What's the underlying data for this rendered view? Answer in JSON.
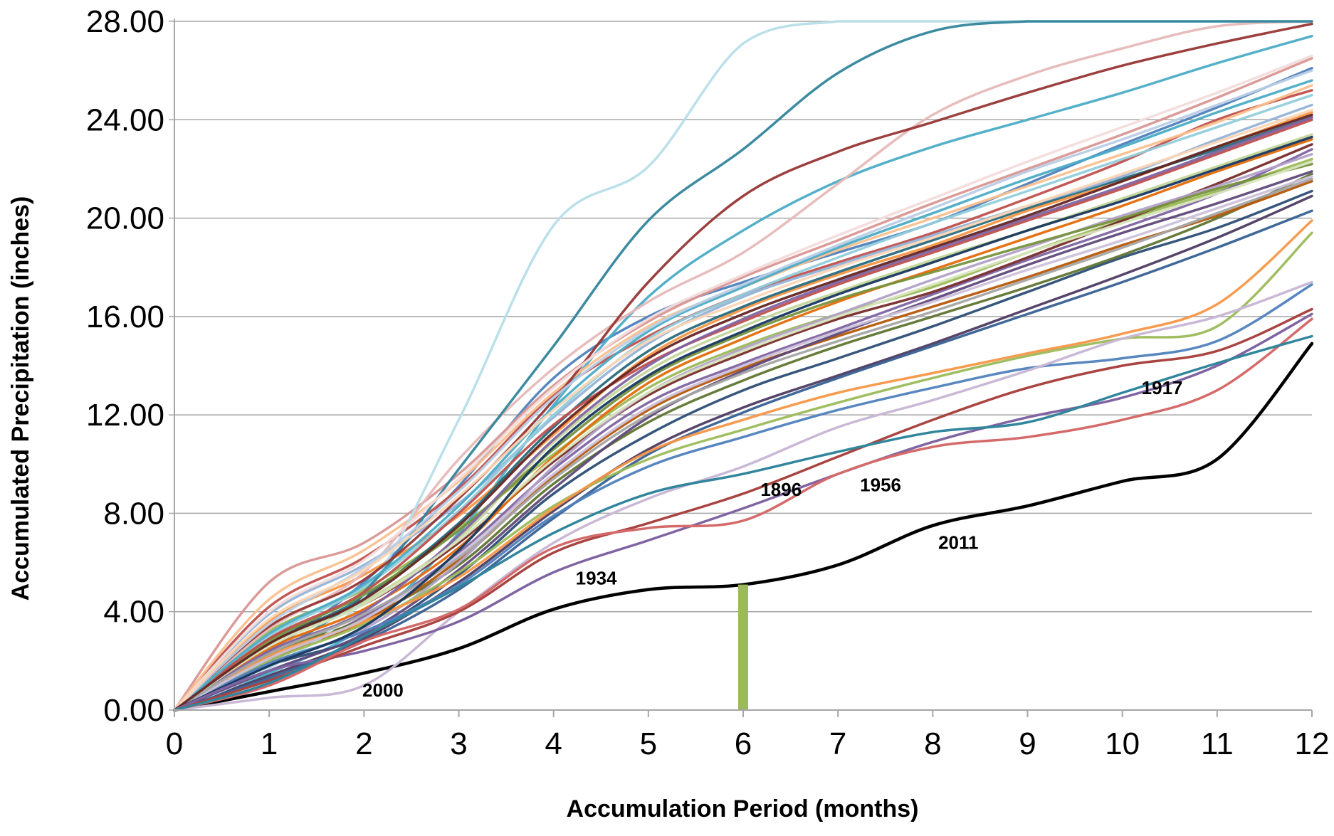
{
  "chart_data": {
    "type": "line",
    "title": "",
    "xlabel": "Accumulation Period (months)",
    "ylabel": "Accumulated Precipitation (inches)",
    "xlim": [
      0,
      12
    ],
    "ylim": [
      0,
      28
    ],
    "x_ticks": [
      "0",
      "1",
      "2",
      "3",
      "4",
      "5",
      "6",
      "7",
      "8",
      "9",
      "10",
      "11",
      "12"
    ],
    "y_ticks": [
      "0.00",
      "4.00",
      "8.00",
      "12.00",
      "16.00",
      "20.00",
      "24.00",
      "28.00"
    ],
    "grid": "horizontal",
    "legend": "none",
    "x": [
      0,
      1,
      2,
      3,
      4,
      5,
      6,
      7,
      8,
      9,
      10,
      11,
      12
    ],
    "highlight_marker": {
      "x": 6,
      "y_from": 0,
      "y_to": 5.1,
      "color": "#9bbb59"
    },
    "highlighted_series": [
      {
        "name": "2011",
        "color": "#000000",
        "values": [
          0,
          0.75,
          1.5,
          2.5,
          4.1,
          4.9,
          5.1,
          5.9,
          7.5,
          8.3,
          9.3,
          10.2,
          14.9
        ]
      },
      {
        "name": "2000",
        "color": "#c9b8d6",
        "values": [
          0,
          0.5,
          1.0,
          4.0,
          6.8,
          8.6,
          9.9,
          11.5,
          12.6,
          13.8,
          15.1,
          16.0,
          17.4
        ]
      },
      {
        "name": "1934",
        "color": "#8064a2",
        "values": [
          0,
          1.6,
          2.4,
          3.6,
          5.6,
          6.9,
          8.2,
          9.6,
          10.9,
          11.9,
          12.7,
          14.0,
          16.1
        ]
      },
      {
        "name": "1896",
        "color": "#a94441",
        "values": [
          0,
          1.2,
          2.6,
          4.0,
          6.4,
          7.6,
          8.8,
          10.3,
          11.8,
          13.1,
          14.0,
          14.6,
          16.3
        ]
      },
      {
        "name": "1956",
        "color": "#d46a6a",
        "values": [
          0,
          1.0,
          2.8,
          4.1,
          6.6,
          7.4,
          7.7,
          9.6,
          10.7,
          11.1,
          11.8,
          13.0,
          15.9
        ]
      },
      {
        "name": "1917",
        "color": "#31859c",
        "values": [
          0,
          1.1,
          3.0,
          5.0,
          7.2,
          8.8,
          9.6,
          10.5,
          11.3,
          11.7,
          12.9,
          14.1,
          15.2
        ]
      }
    ],
    "background_series": [
      {
        "color": "#4f81bd",
        "values": [
          0,
          2.4,
          5.2,
          9.1,
          13.5,
          16.0,
          17.4,
          18.6,
          19.8,
          21.4,
          23.0,
          24.5,
          26.1
        ]
      },
      {
        "color": "#c0504d",
        "values": [
          0,
          4.2,
          6.2,
          9.0,
          12.8,
          15.2,
          16.9,
          18.2,
          19.4,
          20.8,
          22.3,
          24.0,
          25.2
        ]
      },
      {
        "color": "#9bbb59",
        "values": [
          0,
          3.2,
          4.9,
          7.4,
          10.4,
          13.1,
          14.8,
          16.1,
          17.2,
          18.6,
          19.9,
          21.1,
          22.4
        ]
      },
      {
        "color": "#8064a2",
        "values": [
          0,
          2.0,
          3.8,
          6.4,
          9.8,
          12.5,
          14.1,
          15.5,
          16.9,
          18.3,
          19.6,
          21.0,
          22.8
        ]
      },
      {
        "color": "#4bacc6",
        "values": [
          0,
          1.5,
          3.4,
          7.2,
          12.4,
          16.8,
          19.5,
          21.5,
          22.9,
          24.0,
          25.1,
          26.3,
          27.4
        ]
      },
      {
        "color": "#f79646",
        "values": [
          0,
          3.6,
          5.5,
          7.9,
          11.2,
          14.4,
          16.3,
          17.7,
          18.9,
          20.3,
          21.5,
          22.9,
          24.3
        ]
      },
      {
        "color": "#2c4d75",
        "values": [
          0,
          1.8,
          3.0,
          5.5,
          8.8,
          11.2,
          13.0,
          14.3,
          15.6,
          17.0,
          18.4,
          19.6,
          21.1
        ]
      },
      {
        "color": "#772c2a",
        "values": [
          0,
          2.9,
          4.3,
          6.8,
          10.1,
          12.8,
          14.5,
          15.9,
          17.0,
          18.4,
          19.9,
          21.4,
          23.0
        ]
      },
      {
        "color": "#5f7530",
        "values": [
          0,
          2.3,
          3.7,
          5.9,
          9.2,
          11.7,
          13.4,
          14.8,
          16.0,
          17.2,
          18.5,
          20.0,
          21.8
        ]
      },
      {
        "color": "#4d3b62",
        "values": [
          0,
          1.4,
          2.9,
          5.2,
          8.1,
          10.6,
          12.3,
          13.6,
          14.9,
          16.3,
          17.7,
          19.2,
          20.9
        ]
      },
      {
        "color": "#276a7c",
        "values": [
          0,
          2.7,
          4.6,
          7.6,
          11.5,
          14.6,
          16.4,
          17.8,
          19.1,
          20.4,
          21.6,
          22.8,
          24.1
        ]
      },
      {
        "color": "#b65708",
        "values": [
          0,
          2.1,
          3.6,
          6.1,
          9.5,
          12.2,
          13.9,
          15.2,
          16.4,
          17.6,
          18.9,
          20.1,
          21.5
        ]
      },
      {
        "color": "#95b3d7",
        "values": [
          0,
          3.9,
          5.9,
          8.4,
          11.9,
          14.9,
          16.8,
          18.1,
          19.3,
          20.5,
          21.7,
          23.2,
          24.6
        ]
      },
      {
        "color": "#d99694",
        "values": [
          0,
          5.2,
          6.8,
          9.6,
          13.2,
          15.8,
          17.6,
          19.1,
          20.6,
          22.0,
          23.4,
          24.9,
          26.5
        ]
      },
      {
        "color": "#c3d69b",
        "values": [
          0,
          2.6,
          4.4,
          7.0,
          10.9,
          13.8,
          15.6,
          17.0,
          18.3,
          19.5,
          20.8,
          22.1,
          23.4
        ]
      },
      {
        "color": "#b2a2c7",
        "values": [
          0,
          1.9,
          3.3,
          6.0,
          9.9,
          12.9,
          14.7,
          16.1,
          17.5,
          18.8,
          20.1,
          21.3,
          22.6
        ]
      },
      {
        "color": "#92cddc",
        "values": [
          0,
          3.0,
          5.0,
          8.1,
          12.0,
          15.1,
          16.9,
          18.4,
          19.8,
          21.1,
          22.4,
          23.7,
          25.0
        ]
      },
      {
        "color": "#fac08f",
        "values": [
          0,
          4.5,
          6.5,
          9.3,
          12.9,
          15.6,
          17.2,
          18.7,
          20.0,
          21.3,
          22.6,
          23.9,
          25.4
        ]
      },
      {
        "color": "#e6b9b8",
        "values": [
          0,
          3.3,
          5.6,
          10.2,
          13.9,
          16.6,
          18.6,
          21.4,
          24.2,
          25.8,
          26.9,
          27.8,
          28.0
        ]
      },
      {
        "color": "#b7dee8",
        "values": [
          0,
          1.7,
          4.6,
          11.8,
          19.7,
          22.1,
          27.1,
          28.0,
          28.0,
          28.0,
          28.0,
          28.0,
          28.0
        ]
      },
      {
        "color": "#31859c",
        "values": [
          0,
          2.2,
          4.8,
          9.8,
          14.8,
          19.9,
          22.8,
          25.9,
          27.6,
          28.0,
          28.0,
          28.0,
          28.0
        ]
      },
      {
        "color": "#e46c0a",
        "values": [
          0,
          2.5,
          4.1,
          6.6,
          10.3,
          13.3,
          15.1,
          16.6,
          17.9,
          19.2,
          20.5,
          21.9,
          23.2
        ]
      },
      {
        "color": "#366092",
        "values": [
          0,
          1.3,
          2.8,
          4.9,
          7.8,
          10.4,
          12.1,
          13.5,
          14.8,
          16.1,
          17.4,
          18.8,
          20.3
        ]
      },
      {
        "color": "#963634",
        "values": [
          0,
          3.4,
          5.3,
          8.6,
          12.6,
          17.4,
          20.9,
          22.7,
          23.9,
          25.1,
          26.2,
          27.1,
          27.9
        ]
      },
      {
        "color": "#76923c",
        "values": [
          0,
          2.8,
          4.7,
          7.3,
          10.6,
          13.5,
          15.3,
          16.7,
          17.8,
          18.9,
          20.0,
          21.2,
          22.2
        ]
      },
      {
        "color": "#5f497a",
        "values": [
          0,
          1.6,
          3.1,
          5.7,
          9.0,
          11.9,
          13.8,
          15.3,
          16.7,
          18.1,
          19.4,
          20.6,
          21.9
        ]
      },
      {
        "color": "#9bbb59",
        "values": [
          0,
          2.0,
          3.5,
          5.6,
          8.3,
          10.2,
          11.4,
          12.5,
          13.5,
          14.4,
          15.1,
          15.6,
          19.4
        ]
      },
      {
        "color": "#4f81bd",
        "values": [
          0,
          1.9,
          3.2,
          5.1,
          7.9,
          9.9,
          11.1,
          12.2,
          13.1,
          13.9,
          14.3,
          15.0,
          17.3
        ]
      },
      {
        "color": "#f79646",
        "values": [
          0,
          2.2,
          3.6,
          5.4,
          8.2,
          10.5,
          11.8,
          12.9,
          13.7,
          14.5,
          15.3,
          16.5,
          19.9
        ]
      },
      {
        "color": "#c0504d",
        "values": [
          0,
          2.9,
          4.8,
          8.0,
          11.6,
          14.1,
          15.8,
          17.3,
          18.6,
          19.9,
          21.2,
          22.6,
          24.0
        ]
      },
      {
        "color": "#4bacc6",
        "values": [
          0,
          3.1,
          5.1,
          8.3,
          12.3,
          15.4,
          17.2,
          18.8,
          20.2,
          21.6,
          22.9,
          24.3,
          25.6
        ]
      },
      {
        "color": "#8064a2",
        "values": [
          0,
          2.4,
          4.0,
          7.1,
          11.0,
          14.0,
          15.9,
          17.4,
          18.7,
          20.0,
          21.3,
          22.7,
          24.1
        ]
      },
      {
        "color": "#b9cde5",
        "values": [
          0,
          3.5,
          5.8,
          8.9,
          12.7,
          15.5,
          17.3,
          18.9,
          20.4,
          21.9,
          23.2,
          24.6,
          26.0
        ]
      },
      {
        "color": "#f2dcdb",
        "values": [
          0,
          4.0,
          6.1,
          9.4,
          13.1,
          15.9,
          17.7,
          19.3,
          20.8,
          22.3,
          23.7,
          25.1,
          26.6
        ]
      },
      {
        "color": "#d7e4bd",
        "values": [
          0,
          2.6,
          4.3,
          6.9,
          10.2,
          12.9,
          14.6,
          16.0,
          17.3,
          18.6,
          19.8,
          21.0,
          22.3
        ]
      },
      {
        "color": "#ccc1da",
        "values": [
          0,
          2.1,
          3.7,
          6.3,
          9.6,
          12.3,
          14.0,
          15.4,
          16.6,
          17.9,
          19.1,
          20.4,
          21.7
        ]
      },
      {
        "color": "#fcd5b5",
        "values": [
          0,
          3.7,
          5.7,
          8.7,
          12.2,
          15.0,
          16.6,
          18.0,
          19.2,
          20.5,
          21.8,
          23.1,
          24.4
        ]
      },
      {
        "color": "#a5a5a5",
        "values": [
          0,
          2.3,
          3.9,
          6.2,
          9.4,
          12.0,
          13.7,
          15.0,
          16.2,
          17.5,
          18.8,
          20.2,
          21.6
        ]
      },
      {
        "color": "#17375e",
        "values": [
          0,
          1.8,
          3.4,
          6.5,
          10.7,
          13.6,
          15.4,
          16.9,
          18.2,
          19.5,
          20.7,
          22.0,
          23.3
        ]
      },
      {
        "color": "#632523",
        "values": [
          0,
          2.7,
          4.5,
          7.5,
          11.3,
          14.3,
          16.1,
          17.5,
          18.8,
          20.1,
          21.5,
          22.9,
          24.2
        ]
      }
    ]
  },
  "annotations": [
    {
      "text": "2000",
      "x": 2.2,
      "y": 0.55
    },
    {
      "text": "1934",
      "x": 4.45,
      "y": 5.1
    },
    {
      "text": "1896",
      "x": 6.4,
      "y": 8.7
    },
    {
      "text": "1956",
      "x": 7.45,
      "y": 8.9
    },
    {
      "text": "2011",
      "x": 8.27,
      "y": 6.55
    },
    {
      "text": "1917",
      "x": 10.42,
      "y": 12.85
    }
  ],
  "colors": {
    "grid": "#a6a6a6",
    "axis": "#000000",
    "background": "#ffffff"
  }
}
